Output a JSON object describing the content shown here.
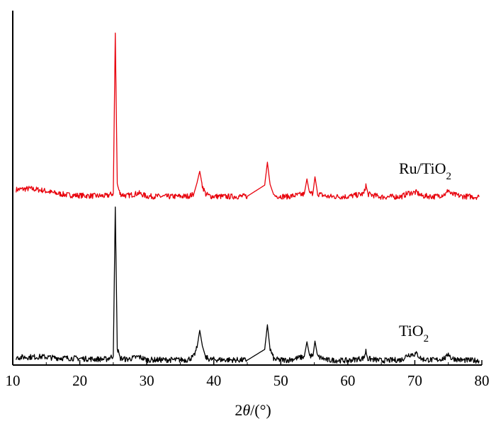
{
  "chart_data": {
    "type": "line",
    "xlabel": {
      "pre": "2",
      "sym": "θ",
      "post": "/(°)"
    },
    "xlim": [
      10,
      80
    ],
    "xticks": [
      10,
      20,
      30,
      40,
      50,
      60,
      70,
      80
    ],
    "ylim": [
      0,
      100
    ],
    "grid": false,
    "legend": "none",
    "series": [
      {
        "name": "Ru/TiO2",
        "label": {
          "main": "Ru/TiO",
          "sub": "2"
        },
        "color": "#e8000b",
        "baseline": 48.5,
        "noise": 0.8,
        "x": [
          10.5,
          12.5,
          14.5,
          16.0,
          18.0,
          20.0,
          22.0,
          24.0,
          25.0,
          25.3,
          25.6,
          26.0,
          27.0,
          28.8,
          30.0,
          33.0,
          36.0,
          37.0,
          37.5,
          37.9,
          38.3,
          38.8,
          39.5,
          42.0,
          45.0,
          47.6,
          48.0,
          48.4,
          49.0,
          51.0,
          53.5,
          53.9,
          54.3,
          54.8,
          55.1,
          55.5,
          57.0,
          60.0,
          62.4,
          62.7,
          63.0,
          65.0,
          68.0,
          69.0,
          70.3,
          71.0,
          73.0,
          74.7,
          75.0,
          75.4,
          77.0,
          79.6
        ],
        "y": [
          50.5,
          50.8,
          50.3,
          49.6,
          49.0,
          48.8,
          48.7,
          48.7,
          49.4,
          95.6,
          52.0,
          49.3,
          48.7,
          49.5,
          48.6,
          48.5,
          48.6,
          49.1,
          52.5,
          55.8,
          51.6,
          49.2,
          48.6,
          48.5,
          48.6,
          51.8,
          58.4,
          52.0,
          48.7,
          48.5,
          49.2,
          53.6,
          49.4,
          49.5,
          54.2,
          49.3,
          48.5,
          48.5,
          49.3,
          51.8,
          49.2,
          48.4,
          48.5,
          49.5,
          49.7,
          48.7,
          48.5,
          49.3,
          50.6,
          49.2,
          48.6,
          48.4
        ]
      },
      {
        "name": "TiO2",
        "label": {
          "main": "TiO",
          "sub": "2"
        },
        "color": "#000000",
        "baseline": 1.2,
        "noise": 0.8,
        "x": [
          10.5,
          12.5,
          14.5,
          16.0,
          18.0,
          20.0,
          22.0,
          24.0,
          25.0,
          25.3,
          25.6,
          26.0,
          27.0,
          28.8,
          30.0,
          33.0,
          36.0,
          37.0,
          37.5,
          37.9,
          38.3,
          38.8,
          39.5,
          42.0,
          45.0,
          47.6,
          48.0,
          48.4,
          49.0,
          51.0,
          53.5,
          53.9,
          54.3,
          54.8,
          55.1,
          55.5,
          57.0,
          60.0,
          62.4,
          62.7,
          63.0,
          65.0,
          68.0,
          69.0,
          70.3,
          71.0,
          73.0,
          74.7,
          75.0,
          75.4,
          77.0,
          79.6
        ],
        "y": [
          2.2,
          2.3,
          2.4,
          2.1,
          2.0,
          1.9,
          1.7,
          1.7,
          2.6,
          45.5,
          5.0,
          2.0,
          1.6,
          2.4,
          1.5,
          1.5,
          1.5,
          2.4,
          5.0,
          10.0,
          5.5,
          2.2,
          1.6,
          1.5,
          1.4,
          4.5,
          11.6,
          4.6,
          1.6,
          1.4,
          2.4,
          6.7,
          2.7,
          2.6,
          6.9,
          2.4,
          1.4,
          1.3,
          2.0,
          4.1,
          1.8,
          1.3,
          1.5,
          3.0,
          3.2,
          1.7,
          1.4,
          2.1,
          3.5,
          2.0,
          1.4,
          1.3
        ]
      }
    ]
  }
}
